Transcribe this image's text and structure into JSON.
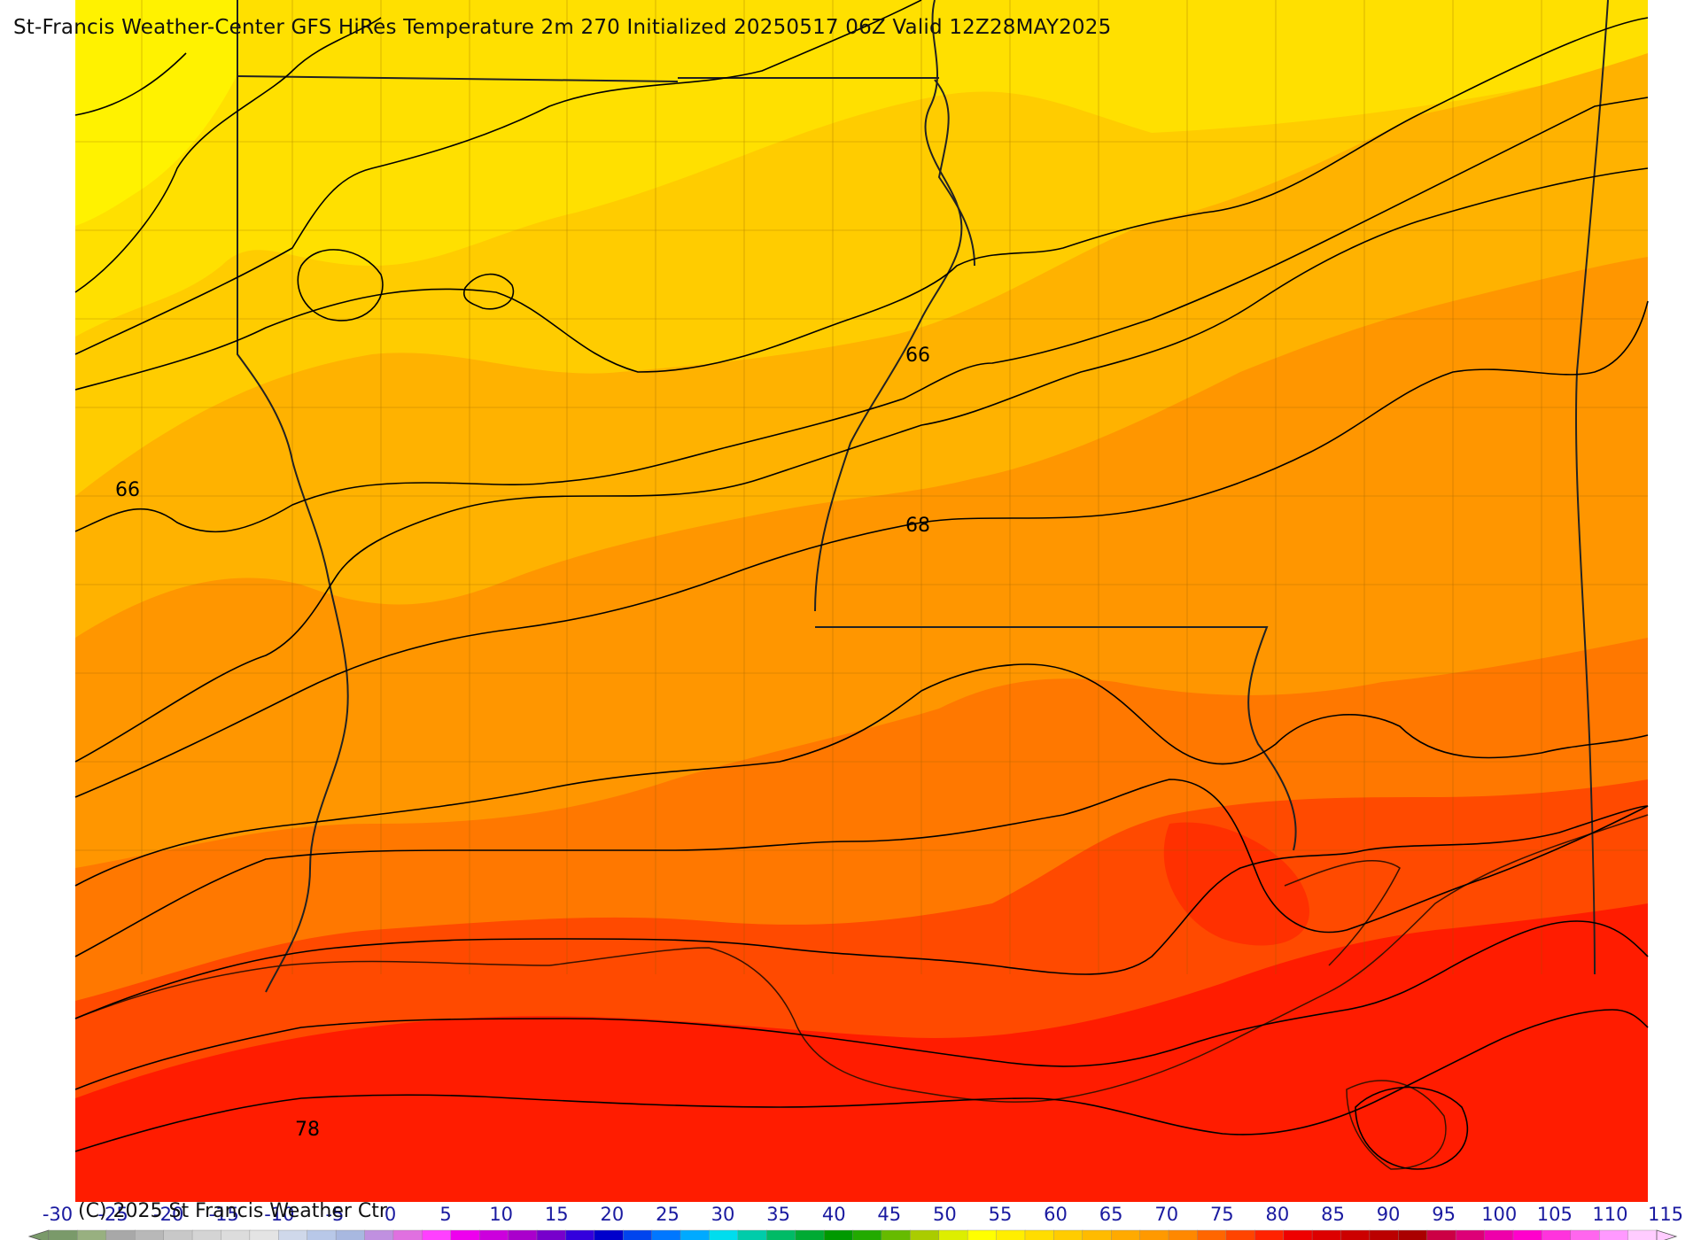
{
  "title": "St-Francis Weather-Center GFS HiRes Temperature 2m  270 Initialized 20250517 06Z Valid 12Z28MAY2025",
  "copyright": "(C) 2025 St Francis Weather Ctr",
  "contour_labels": [
    "66",
    "66",
    "68",
    "78"
  ],
  "colorbar": {
    "ticks": [
      "-30",
      "-25",
      "-20",
      "-15",
      "-10",
      "-5",
      "0",
      "5",
      "10",
      "15",
      "20",
      "25",
      "30",
      "35",
      "40",
      "45",
      "50",
      "55",
      "60",
      "65",
      "70",
      "75",
      "80",
      "85",
      "90",
      "95",
      "100",
      "105",
      "110",
      "115"
    ],
    "colors": [
      "#7a9a6a",
      "#98b080",
      "#a8a8a8",
      "#b8b8b8",
      "#c8c8c8",
      "#d4d4d4",
      "#dcdcdc",
      "#e4e4e4",
      "#cfd8ea",
      "#b8c8e8",
      "#a8b8e0",
      "#c090e0",
      "#e070e0",
      "#ff40ff",
      "#ee00ee",
      "#cc00dd",
      "#aa00cc",
      "#7700cc",
      "#3300dd",
      "#0000cc",
      "#0044ee",
      "#0077ff",
      "#00aaff",
      "#00ddee",
      "#00ccaa",
      "#00bb66",
      "#00aa33",
      "#009900",
      "#22aa00",
      "#66bb00",
      "#aacc00",
      "#ddee00",
      "#ffff00",
      "#ffee00",
      "#ffdd00",
      "#ffcc00",
      "#ffbb00",
      "#ffaa00",
      "#ff9900",
      "#ff8800",
      "#ff6600",
      "#ff4400",
      "#ff2200",
      "#ee0000",
      "#dd0000",
      "#cc0000",
      "#bb0000",
      "#aa0000",
      "#cc0044",
      "#dd0077",
      "#ee00aa",
      "#ff00cc",
      "#ff33dd",
      "#ff66ee",
      "#ff99ff",
      "#ffccff"
    ]
  },
  "colors": {
    "yellow": "#ffee00",
    "gold": "#ffcc00",
    "amber": "#ffb000",
    "orange": "#ff9500",
    "dark_orange": "#ff7500",
    "red_orange": "#ff4800",
    "red": "#ff1a00",
    "border": "#222222"
  }
}
